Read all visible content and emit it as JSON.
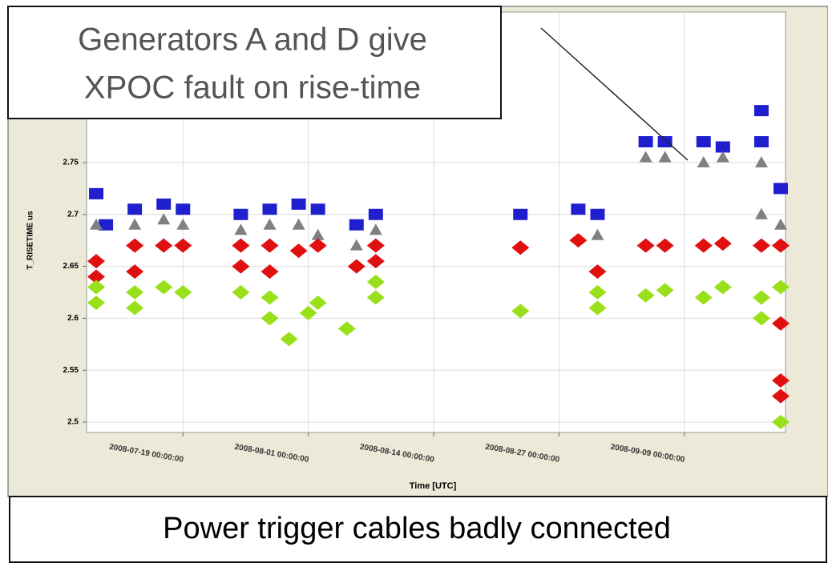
{
  "chart_data": {
    "type": "scatter",
    "annotation": [
      "Generators A and D give",
      "XPOC fault on rise-time"
    ],
    "caption": "Power trigger cables badly connected",
    "xlabel": "Time [UTC]",
    "ylabel": "T_RISETIME us",
    "xlim": [
      "2008-07-09 00:00:00",
      "2008-09-19 12:00:00"
    ],
    "xticks": [
      "2008-07-19 00:00:00",
      "2008-08-01 00:00:00",
      "2008-08-14 00:00:00",
      "2008-08-27 00:00:00",
      "2008-09-09 00:00:00"
    ],
    "ylim": [
      2.49,
      2.895
    ],
    "yticks": [
      2.5,
      2.55,
      2.6,
      2.65,
      2.7,
      2.75
    ],
    "grid": true,
    "series": [
      {
        "color": "#1f1fd0",
        "marker": "square",
        "x": [
          "2008-07-10 00:00:00",
          "2008-07-11 00:00:00",
          "2008-07-14 00:00:00",
          "2008-07-17 00:00:00",
          "2008-07-19 00:00:00",
          "2008-07-25 00:00:00",
          "2008-07-28 00:00:00",
          "2008-07-31 00:00:00",
          "2008-08-02 00:00:00",
          "2008-08-06 00:00:00",
          "2008-08-08 00:00:00",
          "2008-08-23 00:00:00",
          "2008-08-29 00:00:00",
          "2008-08-31 00:00:00",
          "2008-09-05 00:00:00",
          "2008-09-07 00:00:00",
          "2008-09-11 00:00:00",
          "2008-09-13 00:00:00",
          "2008-09-17 00:00:00",
          "2008-09-17 00:00:00",
          "2008-09-19 00:00:00"
        ],
        "values": [
          2.72,
          2.69,
          2.705,
          2.71,
          2.705,
          2.7,
          2.705,
          2.71,
          2.705,
          2.69,
          2.7,
          2.7,
          2.705,
          2.7,
          2.77,
          2.77,
          2.77,
          2.765,
          2.8,
          2.77,
          2.725
        ]
      },
      {
        "color": "#808080",
        "marker": "triangle",
        "x": [
          "2008-07-10 00:00:00",
          "2008-07-14 00:00:00",
          "2008-07-17 00:00:00",
          "2008-07-19 00:00:00",
          "2008-07-25 00:00:00",
          "2008-07-28 00:00:00",
          "2008-07-31 00:00:00",
          "2008-08-02 00:00:00",
          "2008-08-06 00:00:00",
          "2008-08-08 00:00:00",
          "2008-08-31 00:00:00",
          "2008-09-05 00:00:00",
          "2008-09-07 00:00:00",
          "2008-09-11 00:00:00",
          "2008-09-13 00:00:00",
          "2008-09-17 00:00:00",
          "2008-09-17 00:00:00",
          "2008-09-19 00:00:00"
        ],
        "values": [
          2.69,
          2.69,
          2.695,
          2.69,
          2.685,
          2.69,
          2.69,
          2.68,
          2.67,
          2.685,
          2.68,
          2.755,
          2.755,
          2.75,
          2.755,
          2.75,
          2.7,
          2.69
        ]
      },
      {
        "color": "#e01010",
        "marker": "diamond",
        "x": [
          "2008-07-10 00:00:00",
          "2008-07-10 00:00:00",
          "2008-07-14 00:00:00",
          "2008-07-14 00:00:00",
          "2008-07-17 00:00:00",
          "2008-07-19 00:00:00",
          "2008-07-25 00:00:00",
          "2008-07-25 00:00:00",
          "2008-07-28 00:00:00",
          "2008-07-28 00:00:00",
          "2008-07-31 00:00:00",
          "2008-08-02 00:00:00",
          "2008-08-06 00:00:00",
          "2008-08-08 00:00:00",
          "2008-08-08 00:00:00",
          "2008-08-23 00:00:00",
          "2008-08-29 00:00:00",
          "2008-08-31 00:00:00",
          "2008-09-05 00:00:00",
          "2008-09-07 00:00:00",
          "2008-09-11 00:00:00",
          "2008-09-13 00:00:00",
          "2008-09-17 00:00:00",
          "2008-09-19 00:00:00",
          "2008-09-19 00:00:00",
          "2008-09-19 00:00:00",
          "2008-09-19 00:00:00"
        ],
        "values": [
          2.655,
          2.64,
          2.67,
          2.645,
          2.67,
          2.67,
          2.67,
          2.65,
          2.67,
          2.645,
          2.665,
          2.67,
          2.65,
          2.67,
          2.655,
          2.668,
          2.675,
          2.645,
          2.67,
          2.67,
          2.67,
          2.672,
          2.67,
          2.67,
          2.595,
          2.54,
          2.525
        ]
      },
      {
        "color": "#99e01a",
        "marker": "diamond",
        "x": [
          "2008-07-10 00:00:00",
          "2008-07-10 00:00:00",
          "2008-07-14 00:00:00",
          "2008-07-14 00:00:00",
          "2008-07-17 00:00:00",
          "2008-07-19 00:00:00",
          "2008-07-25 00:00:00",
          "2008-07-28 00:00:00",
          "2008-07-28 00:00:00",
          "2008-07-30 00:00:00",
          "2008-08-01 00:00:00",
          "2008-08-02 00:00:00",
          "2008-08-05 00:00:00",
          "2008-08-08 00:00:00",
          "2008-08-08 00:00:00",
          "2008-08-23 00:00:00",
          "2008-08-31 00:00:00",
          "2008-08-31 00:00:00",
          "2008-09-05 00:00:00",
          "2008-09-07 00:00:00",
          "2008-09-11 00:00:00",
          "2008-09-13 00:00:00",
          "2008-09-17 00:00:00",
          "2008-09-17 00:00:00",
          "2008-09-19 00:00:00",
          "2008-09-19 00:00:00"
        ],
        "values": [
          2.63,
          2.615,
          2.625,
          2.61,
          2.63,
          2.625,
          2.625,
          2.62,
          2.6,
          2.58,
          2.605,
          2.615,
          2.59,
          2.62,
          2.635,
          2.607,
          2.625,
          2.61,
          2.622,
          2.627,
          2.62,
          2.63,
          2.62,
          2.6,
          2.63,
          2.5
        ]
      }
    ]
  }
}
